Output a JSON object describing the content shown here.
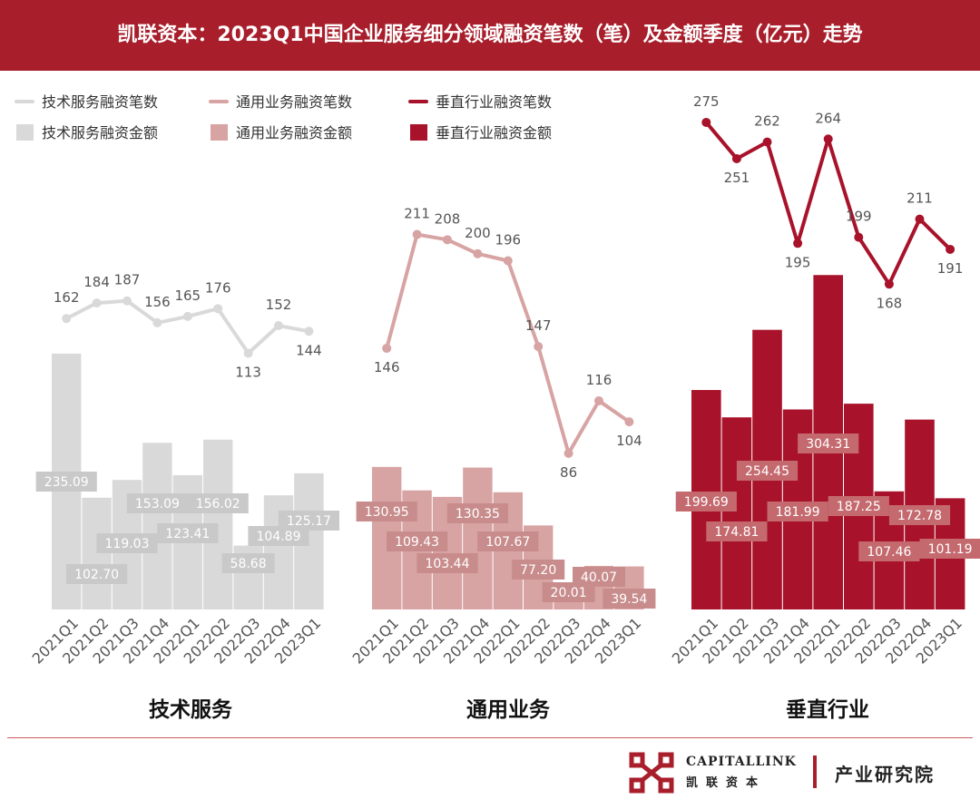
{
  "title": "凯联资本：2023Q1中国企业服务细分领域融资笔数（笔）及金额季度（亿元）走势",
  "legend": [
    {
      "label": "技术服务融资笔数",
      "kind": "line",
      "color": "#d9d9d9"
    },
    {
      "label": "通用业务融资笔数",
      "kind": "line",
      "color": "#d7a3a3"
    },
    {
      "label": "垂直行业融资笔数",
      "kind": "line",
      "color": "#a8122a"
    },
    {
      "label": "技术服务融资金额",
      "kind": "box",
      "color": "#d9d9d9"
    },
    {
      "label": "通用业务融资金额",
      "kind": "box",
      "color": "#d7a3a3"
    },
    {
      "label": "垂直行业融资金额",
      "kind": "box",
      "color": "#a8122a"
    }
  ],
  "chart_data": [
    {
      "type": "bar",
      "title": "技术服务",
      "categories": [
        "2021Q1",
        "2021Q2",
        "2021Q3",
        "2021Q4",
        "2022Q1",
        "2022Q2",
        "2022Q3",
        "2022Q4",
        "2023Q1"
      ],
      "series": [
        {
          "name": "技术服务融资金额",
          "type": "bar",
          "values": [
            235.09,
            102.7,
            119.03,
            153.09,
            123.41,
            156.02,
            58.68,
            104.89,
            125.17
          ],
          "labels": [
            "235.09",
            "102.70",
            "119.03",
            "153.09",
            "123.41",
            "156.02",
            "58.68",
            "104.89",
            "125.17"
          ],
          "color": "#d9d9d9"
        },
        {
          "name": "技术服务融资笔数",
          "type": "line",
          "values": [
            162,
            184,
            187,
            156,
            165,
            176,
            113,
            152,
            144
          ],
          "color": "#d9d9d9"
        }
      ]
    },
    {
      "type": "bar",
      "title": "通用业务",
      "categories": [
        "2021Q1",
        "2021Q2",
        "2021Q3",
        "2021Q4",
        "2022Q1",
        "2022Q2",
        "2022Q3",
        "2022Q4",
        "2023Q1"
      ],
      "series": [
        {
          "name": "通用业务融资金额",
          "type": "bar",
          "values": [
            130.95,
            109.43,
            103.44,
            130.35,
            107.67,
            77.2,
            20.01,
            40.07,
            39.54
          ],
          "labels": [
            "130.95",
            "109.43",
            "103.44",
            "130.35",
            "107.67",
            "77.20",
            "20.01",
            "40.07",
            "39.54"
          ],
          "color": "#d7a3a3"
        },
        {
          "name": "通用业务融资笔数",
          "type": "line",
          "values": [
            146,
            211,
            208,
            200,
            196,
            147,
            86,
            116,
            104
          ],
          "color": "#d7a3a3"
        }
      ]
    },
    {
      "type": "bar",
      "title": "垂直行业",
      "categories": [
        "2021Q1",
        "2021Q2",
        "2021Q3",
        "2021Q4",
        "2022Q1",
        "2022Q2",
        "2022Q3",
        "2022Q4",
        "2023Q1"
      ],
      "series": [
        {
          "name": "垂直行业融资金额",
          "type": "bar",
          "values": [
            199.69,
            174.81,
            254.45,
            181.99,
            304.31,
            187.25,
            107.46,
            172.78,
            101.19
          ],
          "labels": [
            "199.69",
            "174.81",
            "254.45",
            "181.99",
            "304.31",
            "187.25",
            "107.46",
            "172.78",
            "101.19"
          ],
          "color": "#a8122a"
        },
        {
          "name": "垂直行业融资笔数",
          "type": "line",
          "values": [
            275,
            251,
            262,
            195,
            264,
            199,
            168,
            211,
            191
          ],
          "color": "#a8122a"
        }
      ]
    }
  ],
  "footer": {
    "brand_en": "CAPITALLINK",
    "brand_cn": "凯联资本",
    "right_text": "产业研究院",
    "logo_icon": "capitallink-logo-icon"
  }
}
